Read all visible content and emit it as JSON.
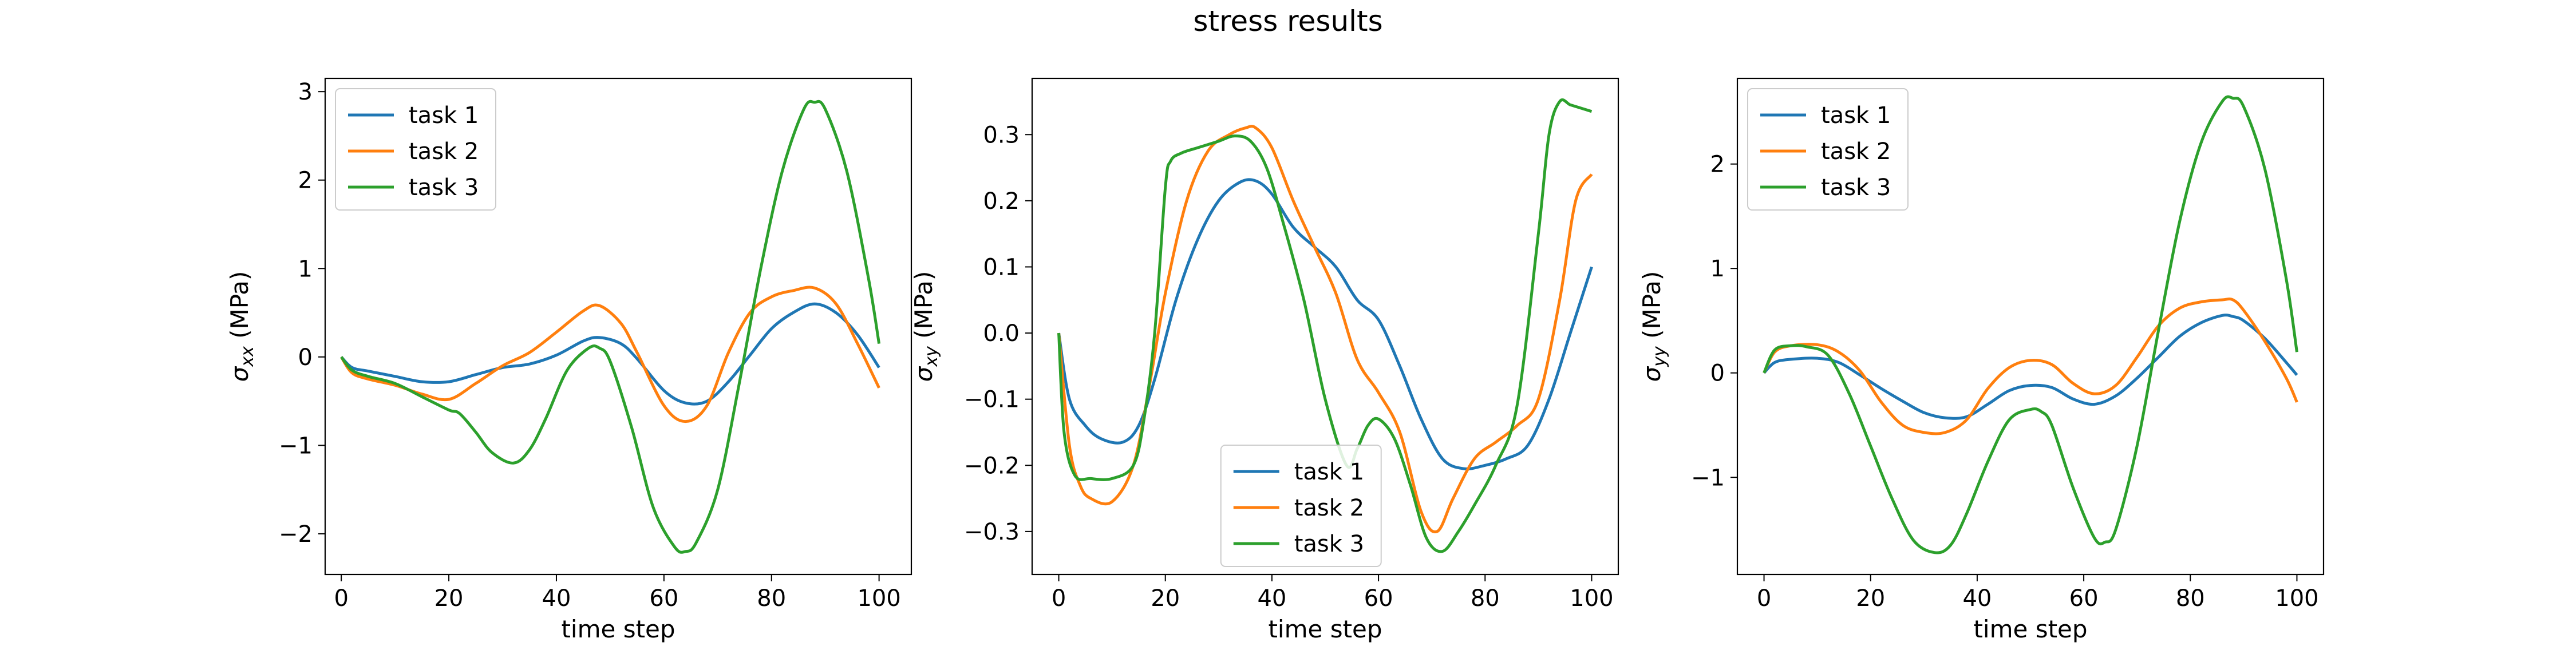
{
  "figure_title": "stress results",
  "chart_data": [
    {
      "type": "line",
      "title": "",
      "xlabel": "time step",
      "ylabel": "σ_xx (MPa)",
      "ylabel_main": "σ",
      "ylabel_sub": "xx",
      "ylabel_unit": " (MPa)",
      "xlim": [
        -3,
        106
      ],
      "ylim": [
        -2.46,
        3.15
      ],
      "xticks": [
        0,
        20,
        40,
        60,
        80,
        100
      ],
      "yticks": [
        -2,
        -1,
        0,
        1,
        2,
        3
      ],
      "legend_loc": "upper-left",
      "grid": false,
      "series": [
        {
          "name": "task 1",
          "color": "#1f77b4",
          "x": [
            0,
            2,
            5,
            10,
            15,
            20,
            25,
            30,
            35,
            40,
            45,
            48,
            52,
            55,
            60,
            64,
            68,
            72,
            76,
            80,
            84,
            88,
            92,
            96,
            100
          ],
          "y": [
            0,
            -0.12,
            -0.16,
            -0.22,
            -0.28,
            -0.28,
            -0.2,
            -0.12,
            -0.08,
            0.02,
            0.18,
            0.22,
            0.15,
            -0.02,
            -0.38,
            -0.52,
            -0.5,
            -0.28,
            0.02,
            0.32,
            0.5,
            0.6,
            0.5,
            0.25,
            -0.12
          ]
        },
        {
          "name": "task 2",
          "color": "#ff7f0e",
          "x": [
            0,
            2,
            5,
            10,
            15,
            20,
            25,
            30,
            35,
            40,
            45,
            48,
            52,
            55,
            60,
            64,
            68,
            72,
            76,
            80,
            84,
            88,
            92,
            96,
            100
          ],
          "y": [
            0,
            -0.18,
            -0.25,
            -0.32,
            -0.42,
            -0.48,
            -0.3,
            -0.1,
            0.05,
            0.28,
            0.52,
            0.58,
            0.38,
            0.05,
            -0.55,
            -0.73,
            -0.55,
            0.05,
            0.5,
            0.68,
            0.75,
            0.78,
            0.6,
            0.15,
            -0.35
          ]
        },
        {
          "name": "task 3",
          "color": "#2ca02c",
          "x": [
            0,
            2,
            5,
            10,
            15,
            20,
            22,
            25,
            28,
            32,
            35,
            38,
            42,
            46,
            48,
            50,
            54,
            58,
            62,
            64,
            66,
            70,
            74,
            78,
            82,
            86,
            88,
            90,
            94,
            98,
            100
          ],
          "y": [
            0,
            -0.15,
            -0.22,
            -0.3,
            -0.45,
            -0.6,
            -0.64,
            -0.85,
            -1.08,
            -1.2,
            -1.05,
            -0.7,
            -0.15,
            0.1,
            0.1,
            -0.05,
            -0.8,
            -1.7,
            -2.15,
            -2.2,
            -2.1,
            -1.5,
            -0.3,
            1.0,
            2.1,
            2.8,
            2.88,
            2.8,
            2.1,
            0.9,
            0.15
          ]
        }
      ]
    },
    {
      "type": "line",
      "title": "",
      "xlabel": "time step",
      "ylabel": "σ_xy (MPa)",
      "ylabel_main": "σ",
      "ylabel_sub": "xy",
      "ylabel_unit": " (MPa)",
      "xlim": [
        -5,
        105
      ],
      "ylim": [
        -0.365,
        0.385
      ],
      "xticks": [
        0,
        20,
        40,
        60,
        80,
        100
      ],
      "yticks": [
        -0.3,
        -0.2,
        -0.1,
        0.0,
        0.1,
        0.2,
        0.3
      ],
      "ytick_labels": [
        "−0.3",
        "−0.2",
        "−0.1",
        "0.0",
        "0.1",
        "0.2",
        "0.3"
      ],
      "legend_loc": "lower-center",
      "grid": false,
      "series": [
        {
          "name": "task 1",
          "color": "#1f77b4",
          "x": [
            0,
            2,
            5,
            8,
            12,
            15,
            18,
            22,
            26,
            30,
            34,
            37,
            40,
            44,
            48,
            52,
            56,
            60,
            64,
            68,
            72,
            76,
            80,
            84,
            88,
            92,
            96,
            100
          ],
          "y": [
            0,
            -0.1,
            -0.14,
            -0.16,
            -0.165,
            -0.14,
            -0.07,
            0.05,
            0.14,
            0.2,
            0.228,
            0.23,
            0.21,
            0.16,
            0.13,
            0.1,
            0.05,
            0.02,
            -0.05,
            -0.13,
            -0.19,
            -0.205,
            -0.2,
            -0.19,
            -0.17,
            -0.1,
            0,
            0.1
          ]
        },
        {
          "name": "task 2",
          "color": "#ff7f0e",
          "x": [
            0,
            2,
            4,
            6,
            10,
            14,
            17,
            20,
            24,
            28,
            32,
            35,
            37,
            40,
            44,
            48,
            52,
            56,
            60,
            64,
            68,
            71,
            74,
            78,
            82,
            86,
            90,
            94,
            97,
            100
          ],
          "y": [
            0,
            -0.17,
            -0.23,
            -0.25,
            -0.255,
            -0.2,
            -0.08,
            0.06,
            0.2,
            0.275,
            0.3,
            0.31,
            0.31,
            0.28,
            0.2,
            0.13,
            0.06,
            -0.04,
            -0.09,
            -0.15,
            -0.27,
            -0.3,
            -0.25,
            -0.19,
            -0.165,
            -0.14,
            -0.1,
            0.05,
            0.2,
            0.24
          ]
        },
        {
          "name": "task 3",
          "color": "#2ca02c",
          "x": [
            0,
            1,
            3,
            6,
            10,
            14,
            16,
            18,
            20,
            21,
            23,
            26,
            30,
            33,
            36,
            39,
            42,
            46,
            50,
            54,
            56,
            58,
            60,
            63,
            66,
            69,
            72,
            75,
            78,
            82,
            86,
            90,
            92,
            94,
            96,
            98,
            100
          ],
          "y": [
            0,
            -0.15,
            -0.215,
            -0.22,
            -0.22,
            -0.2,
            -0.13,
            0.0,
            0.22,
            0.26,
            0.272,
            0.28,
            0.29,
            0.298,
            0.29,
            0.25,
            0.17,
            0.05,
            -0.1,
            -0.2,
            -0.175,
            -0.14,
            -0.13,
            -0.16,
            -0.23,
            -0.31,
            -0.33,
            -0.3,
            -0.26,
            -0.2,
            -0.11,
            0.15,
            0.3,
            0.35,
            0.345,
            0.34,
            0.335
          ]
        }
      ]
    },
    {
      "type": "line",
      "title": "",
      "xlabel": "time step",
      "ylabel": "σ_yy (MPa)",
      "ylabel_main": "σ",
      "ylabel_sub": "yy",
      "ylabel_unit": " (MPa)",
      "xlim": [
        -5,
        105
      ],
      "ylim": [
        -1.93,
        2.82
      ],
      "xticks": [
        0,
        20,
        40,
        60,
        80,
        100
      ],
      "yticks": [
        -1,
        0,
        1,
        2
      ],
      "legend_loc": "upper-left",
      "grid": false,
      "series": [
        {
          "name": "task 1",
          "color": "#1f77b4",
          "x": [
            0,
            2,
            5,
            10,
            14,
            18,
            22,
            26,
            30,
            34,
            38,
            42,
            46,
            50,
            54,
            58,
            62,
            66,
            70,
            74,
            78,
            82,
            86,
            88,
            90,
            94,
            98,
            100
          ],
          "y": [
            0,
            0.1,
            0.13,
            0.14,
            0.1,
            -0.02,
            -0.15,
            -0.27,
            -0.38,
            -0.43,
            -0.42,
            -0.3,
            -0.17,
            -0.12,
            -0.14,
            -0.25,
            -0.3,
            -0.22,
            -0.05,
            0.15,
            0.35,
            0.48,
            0.55,
            0.54,
            0.5,
            0.33,
            0.1,
            -0.02
          ]
        },
        {
          "name": "task 2",
          "color": "#ff7f0e",
          "x": [
            0,
            2,
            5,
            10,
            14,
            18,
            22,
            26,
            30,
            34,
            38,
            42,
            46,
            50,
            54,
            58,
            62,
            66,
            70,
            74,
            78,
            82,
            86,
            88,
            90,
            94,
            98,
            100
          ],
          "y": [
            0,
            0.2,
            0.26,
            0.27,
            0.2,
            0.02,
            -0.28,
            -0.5,
            -0.57,
            -0.57,
            -0.45,
            -0.15,
            0.05,
            0.12,
            0.08,
            -0.1,
            -0.2,
            -0.12,
            0.15,
            0.45,
            0.62,
            0.68,
            0.7,
            0.7,
            0.6,
            0.3,
            -0.05,
            -0.28
          ]
        },
        {
          "name": "task 3",
          "color": "#2ca02c",
          "x": [
            0,
            2,
            5,
            8,
            12,
            16,
            20,
            24,
            28,
            32,
            35,
            38,
            42,
            46,
            50,
            52,
            54,
            58,
            62,
            64,
            66,
            70,
            74,
            78,
            82,
            86,
            88,
            90,
            94,
            98,
            100
          ],
          "y": [
            0,
            0.22,
            0.26,
            0.25,
            0.17,
            -0.2,
            -0.7,
            -1.2,
            -1.6,
            -1.72,
            -1.65,
            -1.35,
            -0.85,
            -0.45,
            -0.35,
            -0.37,
            -0.5,
            -1.1,
            -1.58,
            -1.62,
            -1.5,
            -0.7,
            0.4,
            1.45,
            2.2,
            2.6,
            2.63,
            2.55,
            1.95,
            0.9,
            0.2
          ]
        }
      ]
    }
  ]
}
